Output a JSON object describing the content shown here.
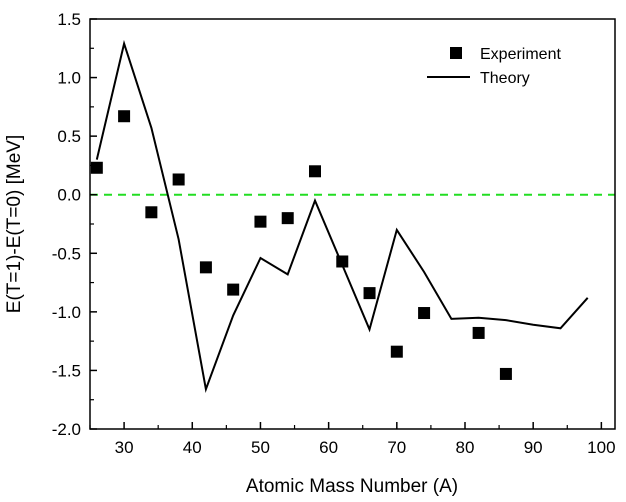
{
  "chart_data": {
    "type": "scatter",
    "xlabel": "Atomic Mass Number  (A)",
    "ylabel": "E(T=1)-E(T=0) [MeV]",
    "xlim": [
      25,
      102
    ],
    "ylim": [
      -2.0,
      1.5
    ],
    "xticks": [
      30,
      40,
      50,
      60,
      70,
      80,
      90,
      100
    ],
    "yticks": [
      -2.0,
      -1.5,
      -1.0,
      -0.5,
      0.0,
      0.5,
      1.0,
      1.5
    ],
    "xtick_labels": [
      "30",
      "40",
      "50",
      "60",
      "70",
      "80",
      "90",
      "100"
    ],
    "ytick_labels": [
      "-2.0",
      "-1.5",
      "-1.0",
      "-0.5",
      "0.0",
      "0.5",
      "1.0",
      "1.5"
    ],
    "grid": false,
    "legend_position": "top-right",
    "reference_line": {
      "y": 0.0,
      "style": "dashed",
      "color": "#22dd22"
    },
    "series": [
      {
        "name": "Experiment",
        "kind": "scatter",
        "marker": "square",
        "color": "#000000",
        "points": [
          [
            26,
            0.23
          ],
          [
            30,
            0.67
          ],
          [
            34,
            -0.15
          ],
          [
            38,
            0.13
          ],
          [
            42,
            -0.62
          ],
          [
            46,
            -0.81
          ],
          [
            50,
            -0.23
          ],
          [
            54,
            -0.2
          ],
          [
            58,
            0.2
          ],
          [
            62,
            -0.57
          ],
          [
            66,
            -0.84
          ],
          [
            70,
            -1.34
          ],
          [
            74,
            -1.01
          ],
          [
            82,
            -1.18
          ],
          [
            86,
            -1.53
          ]
        ]
      },
      {
        "name": "Theory",
        "kind": "line",
        "color": "#000000",
        "points": [
          [
            26,
            0.3
          ],
          [
            30,
            1.29
          ],
          [
            34,
            0.57
          ],
          [
            38,
            -0.38
          ],
          [
            42,
            -1.66
          ],
          [
            46,
            -1.03
          ],
          [
            50,
            -0.54
          ],
          [
            54,
            -0.68
          ],
          [
            58,
            -0.05
          ],
          [
            62,
            -0.6
          ],
          [
            66,
            -1.15
          ],
          [
            70,
            -0.3
          ],
          [
            74,
            -0.66
          ],
          [
            78,
            -1.06
          ],
          [
            82,
            -1.05
          ],
          [
            86,
            -1.07
          ],
          [
            90,
            -1.11
          ],
          [
            94,
            -1.14
          ],
          [
            98,
            -0.88
          ]
        ]
      }
    ]
  }
}
